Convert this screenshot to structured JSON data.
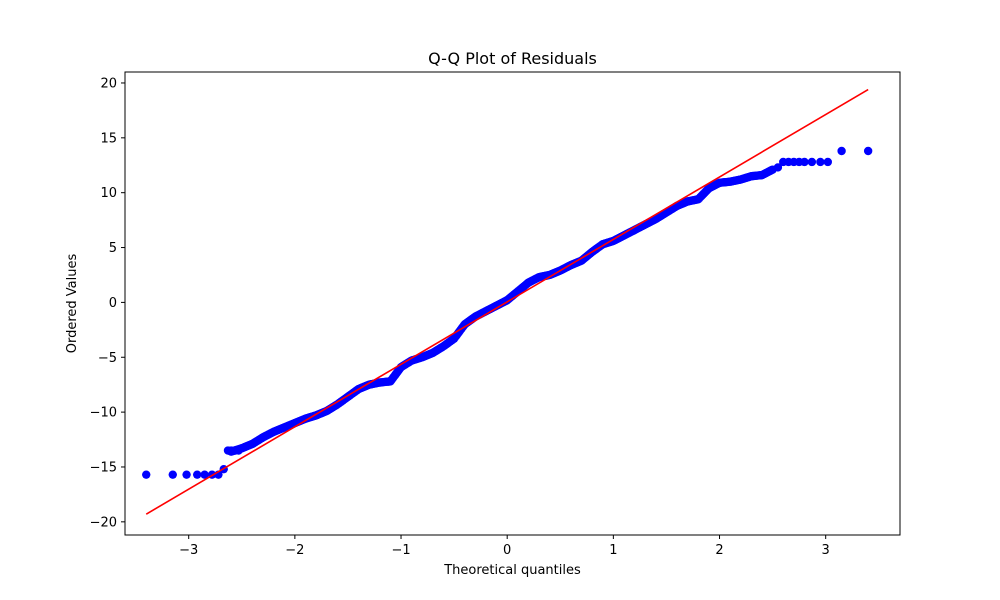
{
  "chart_data": {
    "type": "scatter",
    "title": "Q-Q Plot of Residuals",
    "xlabel": "Theoretical quantiles",
    "ylabel": "Ordered Values",
    "xlim": [
      -3.6,
      3.7
    ],
    "ylim": [
      -21.2,
      21.0
    ],
    "xticks": [
      -3,
      -2,
      -1,
      0,
      1,
      2,
      3
    ],
    "yticks": [
      -20,
      -15,
      -10,
      -5,
      0,
      5,
      10,
      15,
      20
    ],
    "grid": false,
    "legend": "none",
    "marker_color": "#0000ff",
    "line_color": "#ff0000",
    "fit_line": {
      "x": [
        -3.4,
        3.4
      ],
      "y": [
        -19.3,
        19.4
      ]
    },
    "curve": {
      "x": [
        -2.6,
        -2.5,
        -2.4,
        -2.3,
        -2.2,
        -2.1,
        -2.0,
        -1.9,
        -1.8,
        -1.7,
        -1.6,
        -1.5,
        -1.4,
        -1.3,
        -1.2,
        -1.1,
        -1.0,
        -0.9,
        -0.8,
        -0.7,
        -0.6,
        -0.5,
        -0.4,
        -0.3,
        -0.2,
        -0.1,
        0.0,
        0.1,
        0.2,
        0.3,
        0.4,
        0.5,
        0.6,
        0.7,
        0.8,
        0.9,
        1.0,
        1.1,
        1.2,
        1.3,
        1.4,
        1.5,
        1.6,
        1.7,
        1.8,
        1.9,
        2.0,
        2.1,
        2.2,
        2.3,
        2.4,
        2.5
      ],
      "y": [
        -13.6,
        -13.3,
        -12.9,
        -12.3,
        -11.8,
        -11.4,
        -11.0,
        -10.6,
        -10.3,
        -9.9,
        -9.3,
        -8.6,
        -7.9,
        -7.5,
        -7.3,
        -7.2,
        -5.9,
        -5.3,
        -5.0,
        -4.6,
        -4.0,
        -3.3,
        -2.0,
        -1.3,
        -0.8,
        -0.3,
        0.2,
        1.0,
        1.8,
        2.3,
        2.5,
        2.9,
        3.4,
        3.8,
        4.6,
        5.3,
        5.6,
        6.1,
        6.6,
        7.1,
        7.6,
        8.2,
        8.8,
        9.2,
        9.4,
        10.4,
        10.9,
        11.0,
        11.2,
        11.5,
        11.6,
        12.1
      ]
    },
    "points": {
      "x": [
        -3.4,
        -3.15,
        -3.02,
        -2.92,
        -2.85,
        -2.78,
        -2.72,
        -2.67,
        -2.63,
        -2.6,
        -2.56,
        -2.53,
        -2.5,
        2.55,
        2.6,
        2.65,
        2.7,
        2.75,
        2.8,
        2.87,
        2.95,
        3.02,
        3.15,
        3.4
      ],
      "y": [
        -15.7,
        -15.7,
        -15.7,
        -15.7,
        -15.7,
        -15.7,
        -15.7,
        -15.2,
        -13.5,
        -13.5,
        -13.5,
        -13.5,
        -13.3,
        12.3,
        12.8,
        12.8,
        12.8,
        12.8,
        12.8,
        12.8,
        12.8,
        12.8,
        13.8,
        13.8
      ]
    }
  }
}
